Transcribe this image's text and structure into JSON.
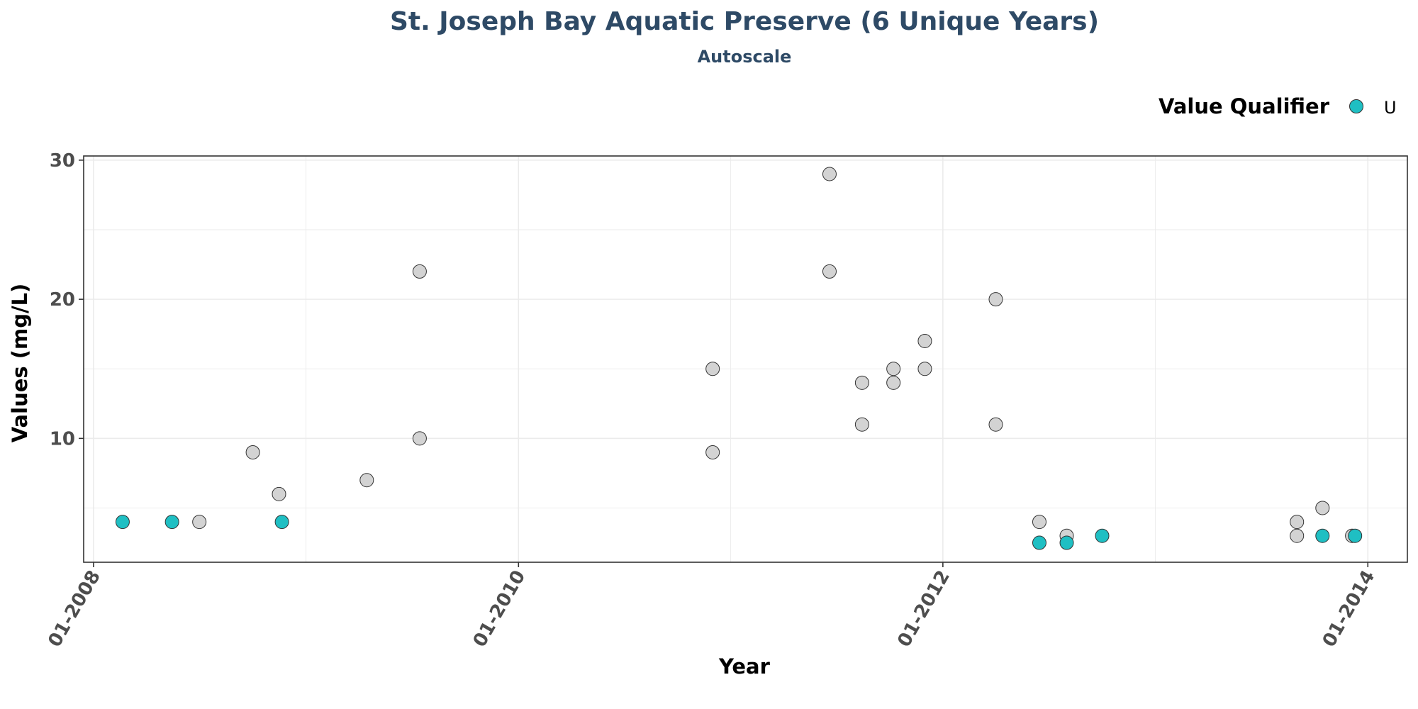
{
  "chart_data": {
    "type": "scatter",
    "title": "St. Joseph Bay Aquatic Preserve (6 Unique Years)",
    "subtitle": "Autoscale",
    "xlabel": "Year",
    "ylabel": "Values (mg/L)",
    "x_tick_labels": [
      "01-2008",
      "01-2010",
      "01-2012",
      "01-2014"
    ],
    "x_ticks": [
      "2008-01-01",
      "2010-01-01",
      "2012-01-01",
      "2014-01-01"
    ],
    "xlim": [
      "2007-12-15",
      "2014-03-10"
    ],
    "yticks": [
      10,
      20,
      30
    ],
    "ylim": [
      1.1,
      30.3
    ],
    "grid": true,
    "legend": {
      "title": "Value Qualifier",
      "placement": "top-right",
      "entries": [
        {
          "label": "U",
          "color": "#1fbfc3"
        }
      ]
    },
    "colors": {
      "qualified": "#1fbfc3",
      "unqualified": "#d3d3d3",
      "title": "#2e4a66",
      "grid": "#ebebeb"
    },
    "points": [
      {
        "x": "2008-02-20",
        "y": 4,
        "qualifier": "U"
      },
      {
        "x": "2008-05-15",
        "y": 4,
        "qualifier": "U"
      },
      {
        "x": "2008-07-01",
        "y": 4,
        "qualifier": ""
      },
      {
        "x": "2008-10-01",
        "y": 9,
        "qualifier": ""
      },
      {
        "x": "2008-11-15",
        "y": 6,
        "qualifier": ""
      },
      {
        "x": "2008-11-20",
        "y": 4,
        "qualifier": "U"
      },
      {
        "x": "2009-04-15",
        "y": 7,
        "qualifier": ""
      },
      {
        "x": "2009-07-15",
        "y": 22,
        "qualifier": ""
      },
      {
        "x": "2009-07-15",
        "y": 10,
        "qualifier": ""
      },
      {
        "x": "2010-12-01",
        "y": 15,
        "qualifier": ""
      },
      {
        "x": "2010-12-01",
        "y": 9,
        "qualifier": ""
      },
      {
        "x": "2011-06-20",
        "y": 29,
        "qualifier": ""
      },
      {
        "x": "2011-06-20",
        "y": 22,
        "qualifier": ""
      },
      {
        "x": "2011-08-15",
        "y": 14,
        "qualifier": ""
      },
      {
        "x": "2011-08-15",
        "y": 11,
        "qualifier": ""
      },
      {
        "x": "2011-10-08",
        "y": 15,
        "qualifier": ""
      },
      {
        "x": "2011-10-08",
        "y": 14,
        "qualifier": ""
      },
      {
        "x": "2011-12-01",
        "y": 17,
        "qualifier": ""
      },
      {
        "x": "2011-12-01",
        "y": 15,
        "qualifier": ""
      },
      {
        "x": "2012-04-01",
        "y": 20,
        "qualifier": ""
      },
      {
        "x": "2012-04-01",
        "y": 11,
        "qualifier": ""
      },
      {
        "x": "2012-06-15",
        "y": 4,
        "qualifier": ""
      },
      {
        "x": "2012-06-15",
        "y": 2.5,
        "qualifier": "U"
      },
      {
        "x": "2012-08-01",
        "y": 3,
        "qualifier": ""
      },
      {
        "x": "2012-08-01",
        "y": 2.5,
        "qualifier": "U"
      },
      {
        "x": "2012-10-01",
        "y": 3,
        "qualifier": "U"
      },
      {
        "x": "2013-09-01",
        "y": 4,
        "qualifier": ""
      },
      {
        "x": "2013-09-01",
        "y": 3,
        "qualifier": ""
      },
      {
        "x": "2013-10-15",
        "y": 5,
        "qualifier": ""
      },
      {
        "x": "2013-10-15",
        "y": 3,
        "qualifier": "U"
      },
      {
        "x": "2013-12-10",
        "y": 3,
        "qualifier": "U"
      },
      {
        "x": "2013-12-05",
        "y": 3,
        "qualifier": ""
      }
    ]
  }
}
